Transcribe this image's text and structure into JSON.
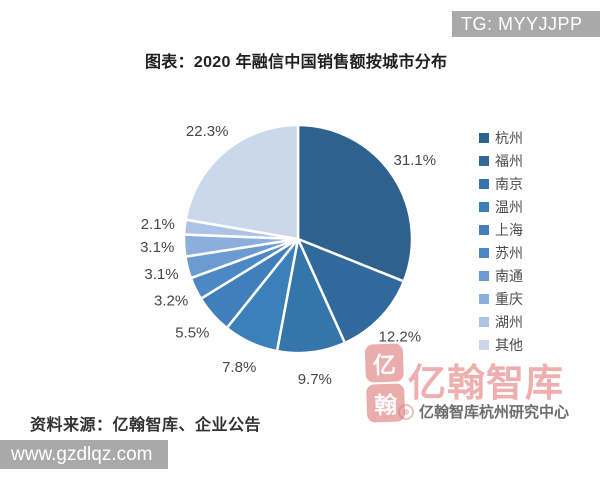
{
  "banner_top": {
    "text": "TG: MYYJJPP"
  },
  "banner_bottom": {
    "text": "www.gzdlqz.com"
  },
  "title": "图表：2020 年融信中国销售额按城市分布",
  "source": "资料来源：亿翰智库、企业公告",
  "watermark": {
    "seal_chars": [
      "亿",
      "翰"
    ],
    "brand_text": "亿翰智库",
    "subtext": "亿翰智库杭州研究中心",
    "color": "#E05F5F"
  },
  "chart_data": {
    "type": "pie",
    "title": "2020 年融信中国销售额按城市分布",
    "categories": [
      "杭州",
      "福州",
      "南京",
      "温州",
      "上海",
      "苏州",
      "南通",
      "重庆",
      "湖州",
      "其他"
    ],
    "values": [
      31.1,
      12.2,
      9.7,
      7.8,
      5.5,
      3.2,
      3.1,
      3.1,
      2.1,
      22.3
    ],
    "unit": "%",
    "label_format": "{value}%",
    "colors": [
      "#2E618E",
      "#30699C",
      "#3476AB",
      "#3B80B8",
      "#417FBC",
      "#4C88C4",
      "#6C9BD2",
      "#8BAEDD",
      "#ADC3E6",
      "#CBD8EB"
    ],
    "slice_border_color": "#FFFFFF",
    "start_angle": "12 o'clock, clockwise",
    "legend_position": "right",
    "data_labels": "outside"
  }
}
